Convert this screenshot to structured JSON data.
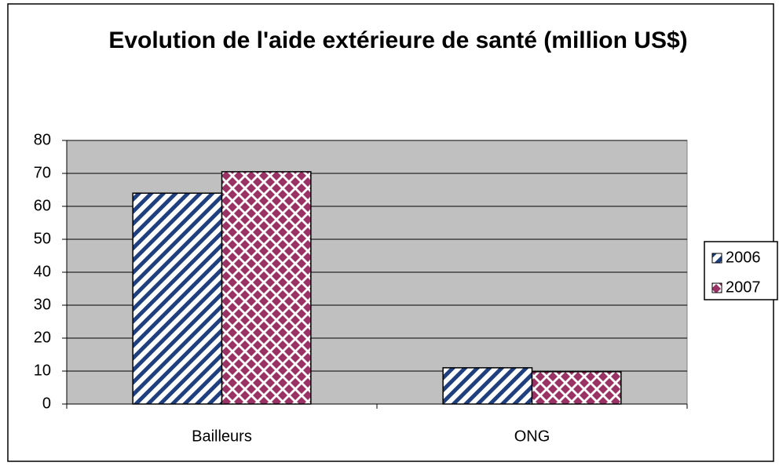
{
  "chart_data": {
    "type": "bar",
    "title": "Evolution de l'aide extérieure de santé (million US$)",
    "categories": [
      "Bailleurs",
      "ONG"
    ],
    "series": [
      {
        "name": "2006",
        "color": "#1f3f7f",
        "values": [
          64,
          11
        ]
      },
      {
        "name": "2007",
        "color": "#993366",
        "values": [
          70.5,
          9.8
        ]
      }
    ],
    "ylim": [
      0,
      80
    ],
    "yticks": [
      0,
      10,
      20,
      30,
      40,
      50,
      60,
      70,
      80
    ],
    "grid": true,
    "legend": "right"
  }
}
